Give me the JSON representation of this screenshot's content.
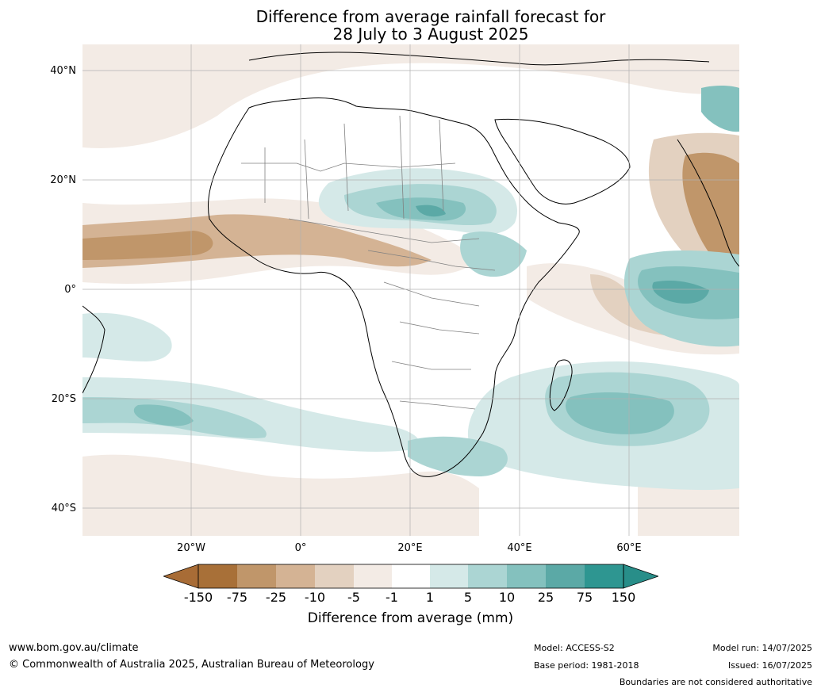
{
  "title": {
    "line1": "Difference from average rainfall forecast for",
    "line2": "28 July to 3 August 2025"
  },
  "map": {
    "region": "Africa",
    "lat_labels": [
      "40°N",
      "20°N",
      "0°",
      "20°S",
      "40°S"
    ],
    "lon_labels": [
      "20°W",
      "0°",
      "20°E",
      "40°E",
      "60°E"
    ],
    "lon_range": [
      -40,
      80
    ],
    "lat_range": [
      -45,
      45
    ],
    "gridlines": true
  },
  "legend": {
    "title": "Difference from average (mm)",
    "ticks": [
      "-150",
      "-75",
      "-25",
      "-10",
      "-5",
      "-1",
      "1",
      "5",
      "10",
      "25",
      "75",
      "150"
    ],
    "colors": [
      "#a87038",
      "#c0966a",
      "#d4b394",
      "#e3d1c0",
      "#f3ebe5",
      "#ffffff",
      "#d5e9e8",
      "#abd5d3",
      "#84c1be",
      "#5ba9a6",
      "#2e9691"
    ],
    "extend_low_color": "#a86c36",
    "extend_high_color": "#288e89"
  },
  "footer": {
    "website": "www.bom.gov.au/climate",
    "copyright": "© Commonwealth of Australia 2025, Australian Bureau of Meteorology",
    "model": "Model: ACCESS-S2",
    "base_period": "Base period: 1981-2018",
    "model_run": "Model run: 14/07/2025",
    "issued": "Issued: 16/07/2025",
    "boundaries_note": "Boundaries are not considered authoritative"
  }
}
